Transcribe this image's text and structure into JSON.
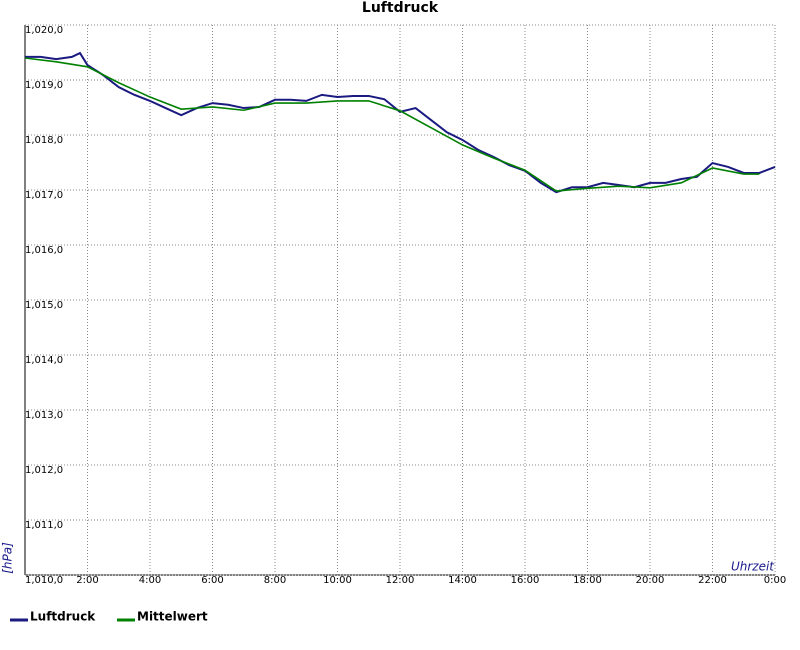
{
  "chart_data": {
    "type": "line",
    "title": "Luftdruck",
    "y_label": "[hPa]",
    "x_label": "Uhrzeit",
    "xlim": [
      0,
      24
    ],
    "xticks": [
      {
        "value": 2,
        "label": "2:00"
      },
      {
        "value": 4,
        "label": "4:00"
      },
      {
        "value": 6,
        "label": "6:00"
      },
      {
        "value": 8,
        "label": "8:00"
      },
      {
        "value": 10,
        "label": "10:00"
      },
      {
        "value": 12,
        "label": "12:00"
      },
      {
        "value": 14,
        "label": "14:00"
      },
      {
        "value": 16,
        "label": "16:00"
      },
      {
        "value": 18,
        "label": "18:00"
      },
      {
        "value": 20,
        "label": "20:00"
      },
      {
        "value": 22,
        "label": "22:00"
      },
      {
        "value": 24,
        "label": "0:00"
      }
    ],
    "ylim": [
      1010,
      1020
    ],
    "yticks": [
      {
        "value": 1010,
        "label": "1,010,0"
      },
      {
        "value": 1011,
        "label": "1,011,0"
      },
      {
        "value": 1012,
        "label": "1,012,0"
      },
      {
        "value": 1013,
        "label": "1,013,0"
      },
      {
        "value": 1014,
        "label": "1,014,0"
      },
      {
        "value": 1015,
        "label": "1,015,0"
      },
      {
        "value": 1016,
        "label": "1,016,0"
      },
      {
        "value": 1017,
        "label": "1,017,0"
      },
      {
        "value": 1018,
        "label": "1,018,0"
      },
      {
        "value": 1019,
        "label": "1,019,0"
      },
      {
        "value": 1020,
        "label": "1,020,0"
      }
    ],
    "grid": true,
    "series": [
      {
        "name": "Luftdruck",
        "color": "#1a1a80",
        "x": [
          0,
          0.5,
          1,
          1.5,
          1.76,
          2,
          2.5,
          3,
          3.5,
          4,
          4.5,
          5,
          5.5,
          6,
          6.5,
          7,
          7.5,
          8,
          8.5,
          9,
          9.5,
          10,
          10.5,
          11,
          11.5,
          12,
          12.5,
          13,
          13.5,
          14,
          14.5,
          15,
          15.5,
          16,
          16.5,
          17,
          17.5,
          18,
          18.5,
          19,
          19.5,
          20,
          20.5,
          21,
          21.5,
          22,
          22.5,
          23,
          23.5,
          24
        ],
        "values": [
          1019.42,
          1019.42,
          1019.38,
          1019.42,
          1019.49,
          1019.27,
          1019.09,
          1018.87,
          1018.73,
          1018.62,
          1018.49,
          1018.36,
          1018.49,
          1018.58,
          1018.55,
          1018.49,
          1018.51,
          1018.64,
          1018.64,
          1018.62,
          1018.73,
          1018.69,
          1018.71,
          1018.71,
          1018.65,
          1018.42,
          1018.49,
          1018.27,
          1018.05,
          1017.91,
          1017.73,
          1017.6,
          1017.45,
          1017.35,
          1017.13,
          1016.96,
          1017.05,
          1017.05,
          1017.13,
          1017.09,
          1017.05,
          1017.13,
          1017.13,
          1017.2,
          1017.24,
          1017.49,
          1017.42,
          1017.31,
          1017.31,
          1017.42
        ]
      },
      {
        "name": "Mittelwert",
        "color": "#008000",
        "x": [
          0,
          1,
          2,
          3,
          4,
          5,
          6,
          7,
          8,
          9,
          10,
          11,
          12,
          13,
          14,
          15,
          16,
          17,
          18,
          19,
          20,
          21,
          22,
          23,
          23.5
        ],
        "values": [
          1019.4,
          1019.33,
          1019.24,
          1018.95,
          1018.69,
          1018.47,
          1018.51,
          1018.45,
          1018.58,
          1018.58,
          1018.62,
          1018.62,
          1018.44,
          1018.13,
          1017.82,
          1017.58,
          1017.36,
          1016.98,
          1017.03,
          1017.07,
          1017.04,
          1017.13,
          1017.4,
          1017.29,
          1017.29
        ]
      }
    ]
  }
}
